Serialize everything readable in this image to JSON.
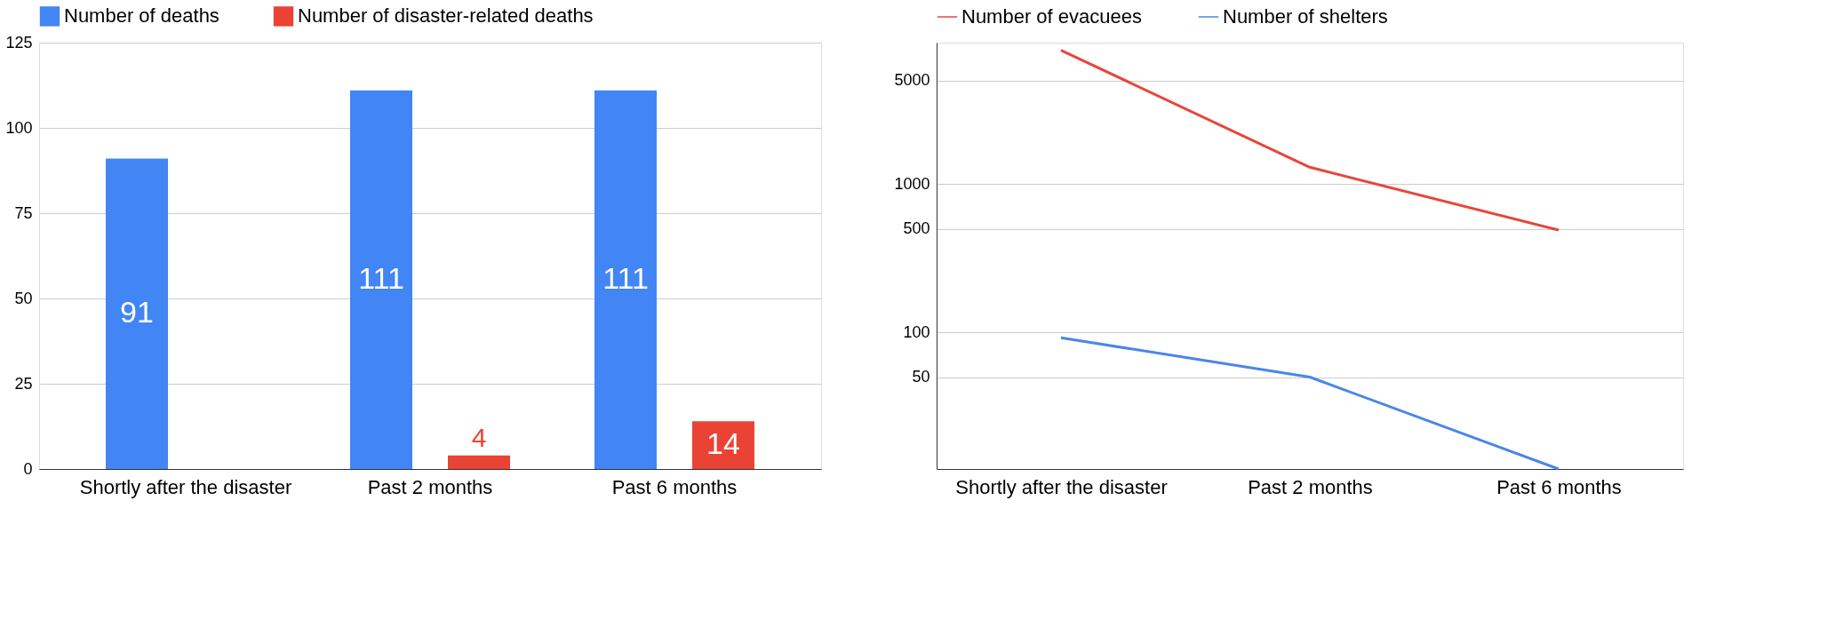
{
  "chart_data": [
    {
      "type": "bar",
      "categories": [
        "Shortly after the disaster",
        "Past 2 months",
        "Past 6 months"
      ],
      "series": [
        {
          "name": "Number of deaths",
          "color": "#4285f4",
          "values": [
            91,
            111,
            111
          ]
        },
        {
          "name": "Number of  disaster-related deaths",
          "color": "#ea4335",
          "values": [
            null,
            4,
            14
          ]
        }
      ],
      "ylim": [
        0,
        125
      ],
      "yticks": [
        0,
        25,
        50,
        75,
        100,
        125
      ],
      "grid": "y",
      "legend": "top",
      "data_labels": true
    },
    {
      "type": "line",
      "categories": [
        "Shortly after the disaster",
        "Past 2 months",
        "Past 6 months"
      ],
      "series": [
        {
          "name": "Number of evacuees",
          "color": "#e8453c",
          "values": [
            8000,
            1300,
            490
          ]
        },
        {
          "name": "Number of shelters",
          "color": "#4a86e8",
          "values": [
            92,
            50,
            12
          ]
        }
      ],
      "log": true,
      "ylim": [
        12,
        9000
      ],
      "yticks": [
        50,
        100,
        500,
        1000,
        5000
      ],
      "grid": "y",
      "legend": "top",
      "marker": "none",
      "line_style": "solid"
    }
  ]
}
